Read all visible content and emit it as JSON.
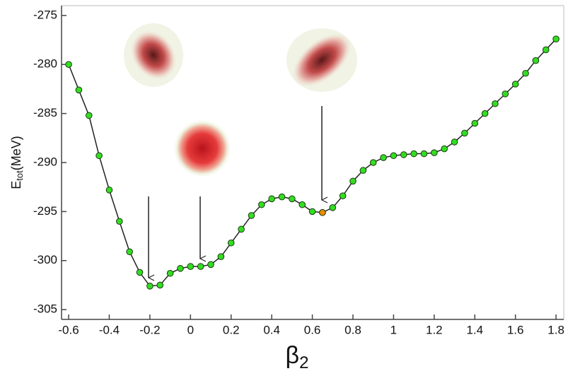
{
  "chart_data": {
    "type": "line",
    "xlabel": "β",
    "xlabel_subscript": "2",
    "ylabel": "E",
    "ylabel_subscript": "tot",
    "ylabel_unit": "(MeV)",
    "x": [
      -0.6,
      -0.55,
      -0.5,
      -0.45,
      -0.4,
      -0.35,
      -0.3,
      -0.25,
      -0.2,
      -0.15,
      -0.1,
      -0.05,
      0,
      0.05,
      0.1,
      0.15,
      0.2,
      0.25,
      0.3,
      0.35,
      0.4,
      0.45,
      0.5,
      0.55,
      0.6,
      0.65,
      0.7,
      0.75,
      0.8,
      0.85,
      0.9,
      0.95,
      1.0,
      1.05,
      1.1,
      1.15,
      1.2,
      1.25,
      1.3,
      1.35,
      1.4,
      1.45,
      1.5,
      1.55,
      1.6,
      1.65,
      1.7,
      1.75,
      1.8
    ],
    "series": [
      {
        "color": "#33dd22",
        "line_color": "#222222",
        "values": [
          -280,
          -282.6,
          -285.2,
          -289.3,
          -292.8,
          -296.0,
          -299.1,
          -301.2,
          -302.6,
          -302.5,
          -301.3,
          -300.8,
          -300.6,
          -300.6,
          -300.4,
          -299.6,
          -298.2,
          -296.8,
          -295.4,
          -294.3,
          -293.7,
          -293.5,
          -293.7,
          -294.3,
          -295.0,
          -295.1,
          -294.6,
          -293.4,
          -291.9,
          -290.8,
          -290.0,
          -289.5,
          -289.3,
          -289.2,
          -289.1,
          -289.1,
          -289.0,
          -288.6,
          -287.9,
          -287.0,
          -286.0,
          -285.0,
          -284.0,
          -283.0,
          -282.0,
          -280.9,
          -279.6,
          -278.5,
          -277.4
        ]
      },
      {
        "color": "#f08c00",
        "x": [
          0.65
        ],
        "values": [
          -295.1
        ]
      }
    ],
    "xlim": [
      -0.635,
      1.838
    ],
    "ylim": [
      -306,
      -274
    ],
    "xticks": [
      -0.6,
      -0.4,
      -0.2,
      0,
      0.2,
      0.4,
      0.6,
      0.8,
      1,
      1.2,
      1.4,
      1.6,
      1.8
    ],
    "yticks": [
      -305,
      -300,
      -295,
      -290,
      -285,
      -280,
      -275
    ]
  }
}
